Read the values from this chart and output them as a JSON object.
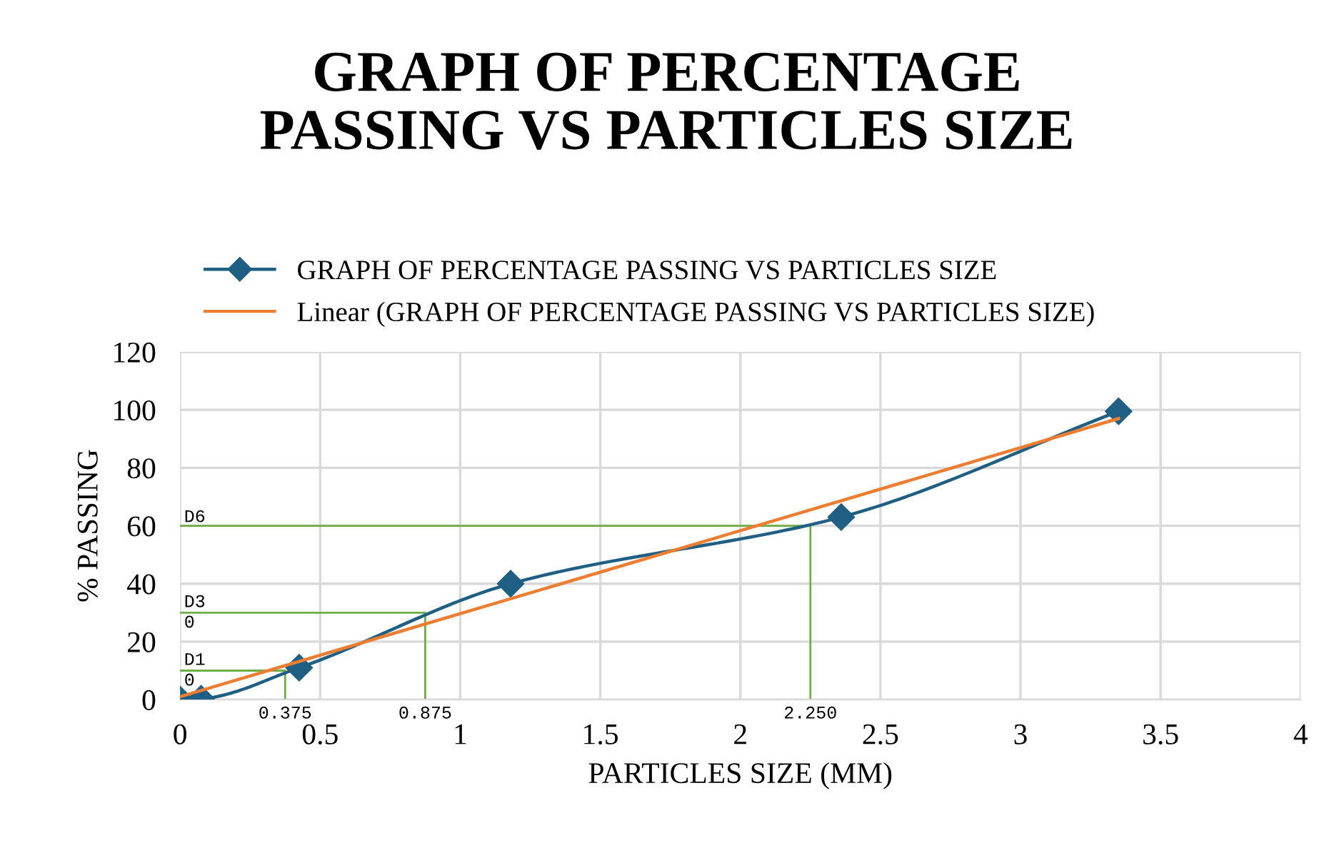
{
  "chart_data": {
    "type": "line",
    "title": "GRAPH OF PERCENTAGE\nPASSING VS PARTICLES SIZE",
    "xlabel": "PARTICLES SIZE (MM)",
    "ylabel": "% PASSING",
    "series": [
      {
        "name": "GRAPH OF PERCENTAGE PASSING VS PARTICLES SIZE",
        "color": "#1f5f84",
        "marker": "diamond",
        "x": [
          0,
          0.075,
          0.425,
          1.18,
          2.36,
          3.35
        ],
        "values": [
          0,
          0.3,
          11,
          40,
          63,
          99.5
        ]
      },
      {
        "name": "Linear (GRAPH OF PERCENTAGE PASSING VS PARTICLES SIZE)",
        "color": "#ed7d31",
        "marker": "none",
        "x": [
          0,
          3.35
        ],
        "values": [
          1,
          97
        ]
      },
      {
        "color": "#70ad47",
        "marker": "none",
        "x": [
          0,
          0.375,
          0.375
        ],
        "values": [
          10,
          10,
          0
        ]
      },
      {
        "color": "#70ad47",
        "marker": "none",
        "x": [
          0,
          0.875,
          0.875
        ],
        "values": [
          30,
          30,
          0
        ]
      },
      {
        "color": "#70ad47",
        "marker": "none",
        "x": [
          0,
          2.25,
          2.25
        ],
        "values": [
          60,
          60,
          0
        ]
      }
    ],
    "annotations": [
      {
        "text": "D1\n0",
        "x": 0,
        "y": 10
      },
      {
        "text": "D3\n0",
        "x": 0,
        "y": 30
      },
      {
        "text": "D6",
        "x": 0,
        "y": 60
      },
      {
        "text": "0.375",
        "x": 0.375,
        "y": 0
      },
      {
        "text": "0.875",
        "x": 0.875,
        "y": 0
      },
      {
        "text": "2.250",
        "x": 2.25,
        "y": 0
      }
    ],
    "xlim": [
      0,
      4
    ],
    "xticks": [
      0,
      0.5,
      1,
      1.5,
      2,
      2.5,
      3,
      3.5,
      4
    ],
    "ylim": [
      0,
      120
    ],
    "yticks": [
      0,
      20,
      40,
      60,
      80,
      100,
      120
    ],
    "grid": true,
    "legend": "top",
    "line_style": "solid"
  }
}
